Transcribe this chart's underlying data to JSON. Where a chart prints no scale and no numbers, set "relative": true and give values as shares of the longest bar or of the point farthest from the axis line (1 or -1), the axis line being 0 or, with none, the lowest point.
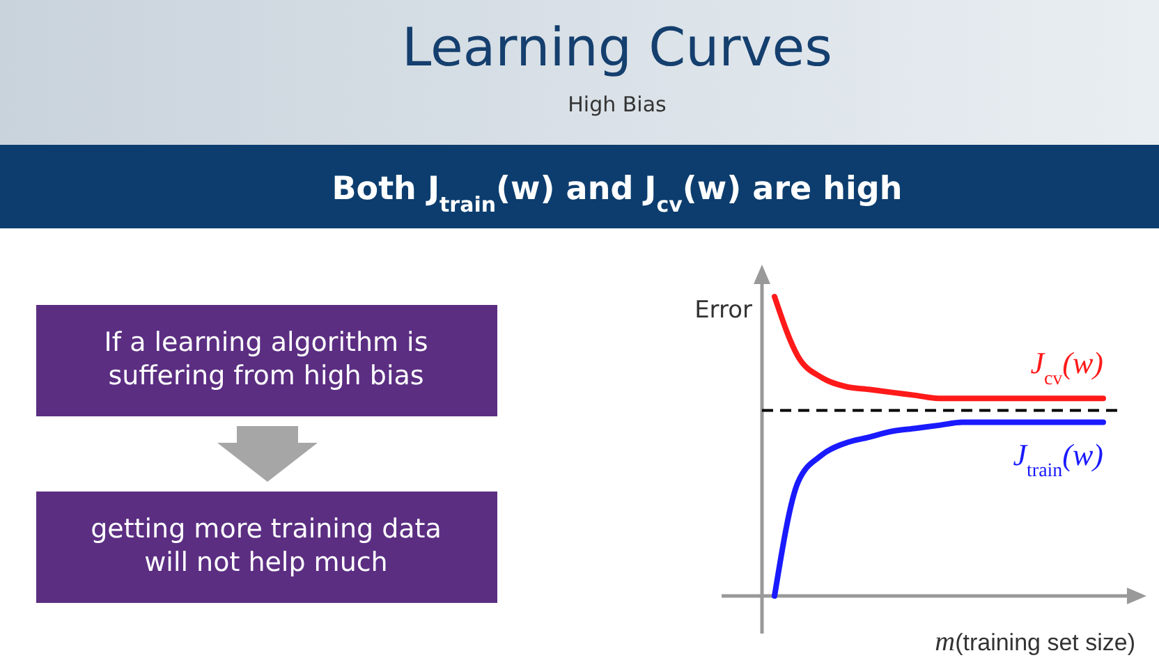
{
  "chart_data": {
    "type": "line",
    "title": "Learning Curves",
    "subtitle": "High Bias",
    "annotations": [
      "Both J$_{train}$(w) and J$_{cv}$(w) are high",
      "If a learning algorithm is suffering from high bias",
      "getting more training data will not help much"
    ],
    "xlabel": "m(training set size)",
    "ylabel": "Error",
    "relative": true,
    "categories": [
      null,
      null,
      null,
      null,
      null,
      null,
      null,
      null,
      null,
      null,
      null,
      null,
      null,
      null,
      null
    ],
    "series": [
      {
        "name": "J$_{cv}$(w)",
        "color": "#ff1a1a",
        "values": [
          1.0,
          0.8,
          0.73,
          0.7,
          0.69,
          0.68,
          0.67,
          0.66,
          0.66,
          0.66,
          0.66,
          0.66,
          0.66,
          0.66,
          0.66
        ]
      },
      {
        "name": "J$_{train}$(w)",
        "color": "#1a1aff",
        "values": [
          0,
          0.38,
          0.47,
          0.51,
          0.53,
          0.55,
          0.56,
          0.57,
          0.58,
          0.58,
          0.58,
          0.58,
          0.58,
          0.58,
          0.58
        ]
      }
    ],
    "ref_lines": [
      {
        "axis": "y",
        "value": 0.62,
        "color": "#000000",
        "line_style": "dashed"
      }
    ],
    "grid": false,
    "legend": false,
    "marker": "none",
    "line_style": "solid"
  }
}
